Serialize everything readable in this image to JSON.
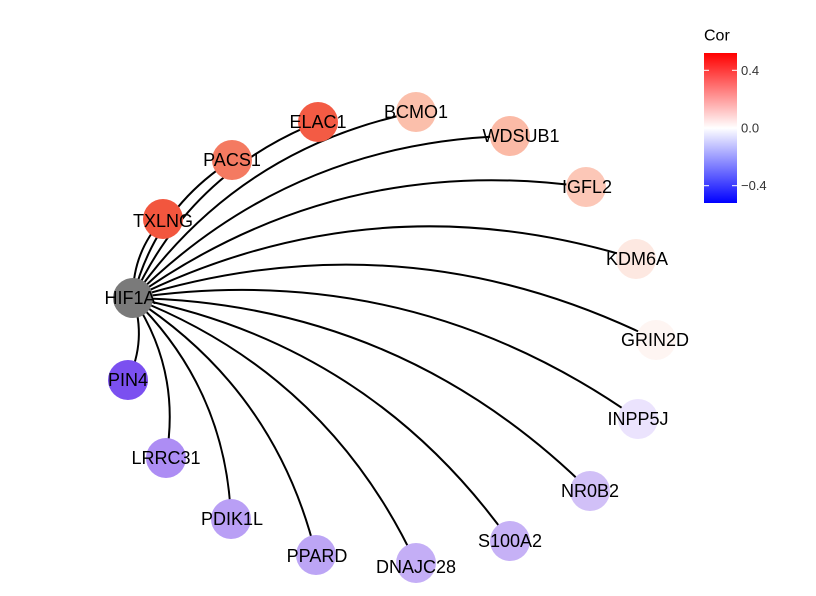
{
  "hub": {
    "label": "HIF1A",
    "color": "#7a7a7a"
  },
  "nodes": [
    {
      "label": "TXLNG",
      "cor": 0.45,
      "color": "#f2563e"
    },
    {
      "label": "PACS1",
      "cor": 0.38,
      "color": "#f47a61"
    },
    {
      "label": "ELAC1",
      "cor": 0.43,
      "color": "#f35b44"
    },
    {
      "label": "BCMO1",
      "cor": 0.2,
      "color": "#fbbfab"
    },
    {
      "label": "WDSUB1",
      "cor": 0.2,
      "color": "#fbbaa6"
    },
    {
      "label": "IGFL2",
      "cor": 0.17,
      "color": "#fcc7b7"
    },
    {
      "label": "KDM6A",
      "cor": 0.07,
      "color": "#fde8e1"
    },
    {
      "label": "GRIN2D",
      "cor": 0.03,
      "color": "#fef5f2"
    },
    {
      "label": "INPP5J",
      "cor": -0.1,
      "color": "#ebe3fd"
    },
    {
      "label": "NR0B2",
      "cor": -0.22,
      "color": "#d1c0f7"
    },
    {
      "label": "S100A2",
      "cor": -0.25,
      "color": "#c6b1f6"
    },
    {
      "label": "DNAJC28",
      "cor": -0.26,
      "color": "#c4aef6"
    },
    {
      "label": "PPARD",
      "cor": -0.28,
      "color": "#bca5f5"
    },
    {
      "label": "PDIK1L",
      "cor": -0.28,
      "color": "#b99ff5"
    },
    {
      "label": "LRRC31",
      "cor": -0.31,
      "color": "#ad8df4"
    },
    {
      "label": "PIN4",
      "cor": -0.43,
      "color": "#7b50f0"
    }
  ],
  "legend": {
    "title": "Cor",
    "ticks": [
      {
        "value": 0.4,
        "label": "0.4"
      },
      {
        "value": 0.0,
        "label": "0.0"
      },
      {
        "value": -0.4,
        "label": "−0.4"
      }
    ],
    "range": [
      -0.52,
      0.52
    ],
    "high_color": "#ff0000",
    "mid_color": "#ffffff",
    "low_color": "#0000ff"
  }
}
